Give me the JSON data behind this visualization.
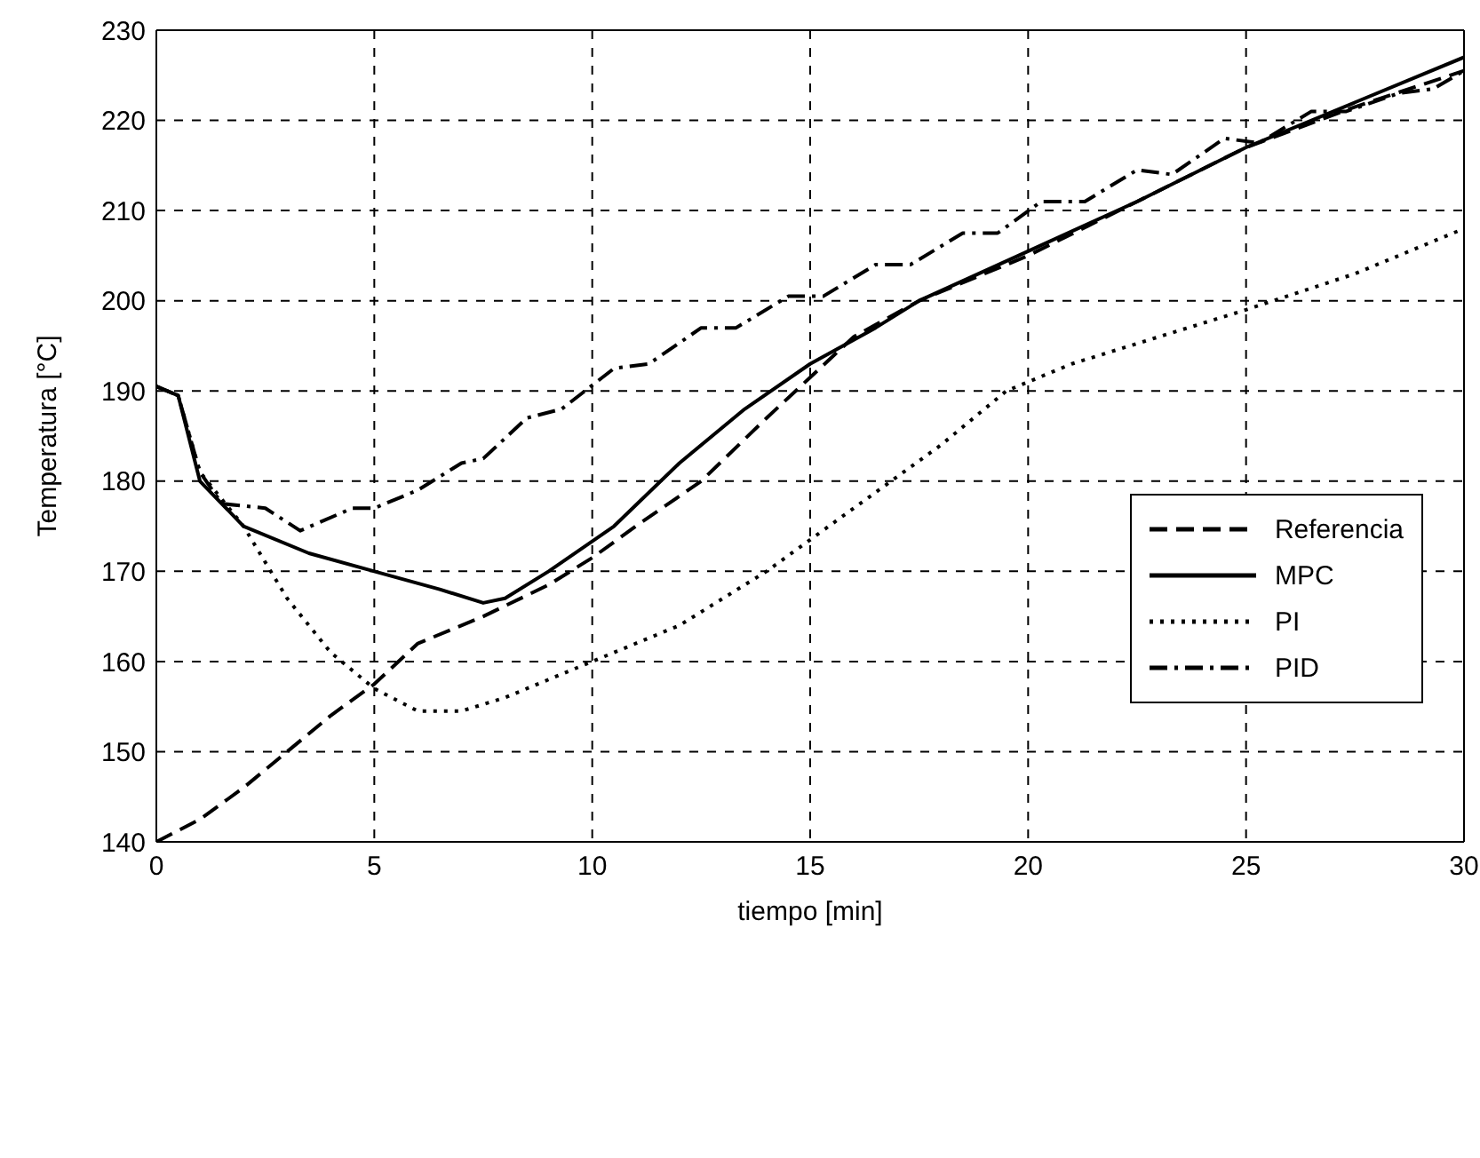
{
  "chart_data": {
    "type": "line",
    "xlabel": "tiempo [min]",
    "ylabel": "Temperatura [°C]",
    "xlim": [
      0,
      30
    ],
    "ylim": [
      140,
      230
    ],
    "xticks": [
      0,
      5,
      10,
      15,
      20,
      25,
      30
    ],
    "yticks": [
      140,
      150,
      160,
      170,
      180,
      190,
      200,
      210,
      220,
      230
    ],
    "grid": true,
    "legend": "right",
    "marker": "none",
    "series": [
      {
        "name": "Referencia",
        "color": "#000000",
        "line_style": "dashed",
        "x": [
          0,
          1,
          2,
          3,
          4,
          5,
          6,
          7.5,
          9,
          10,
          11,
          12.5,
          14,
          15,
          16,
          17.5,
          20,
          22.5,
          25,
          27.5,
          30
        ],
        "values": [
          140,
          142.5,
          146,
          150,
          154,
          157.5,
          162,
          165,
          168.5,
          171.5,
          175,
          180,
          187,
          191.5,
          196,
          200,
          205,
          211,
          217,
          221.5,
          225.5
        ]
      },
      {
        "name": "MPC",
        "color": "#000000",
        "line_style": "solid",
        "x": [
          0,
          0.5,
          1,
          2,
          3.5,
          5,
          6.5,
          7.5,
          8,
          9,
          10.5,
          12,
          13.5,
          15,
          16.5,
          17.5,
          20,
          22.5,
          25,
          27.5,
          30
        ],
        "values": [
          190.5,
          189.5,
          180,
          175,
          172,
          170,
          168,
          166.5,
          167,
          170,
          175,
          182,
          188,
          193,
          197,
          200,
          205.5,
          211,
          217,
          222,
          227
        ]
      },
      {
        "name": "PI",
        "color": "#000000",
        "line_style": "dotted",
        "x": [
          0,
          0.5,
          1,
          2,
          3,
          4,
          5,
          6,
          7,
          8,
          9,
          10,
          12,
          14,
          16,
          18,
          19.5,
          21,
          23,
          25,
          27.5,
          30
        ],
        "values": [
          190.5,
          189.5,
          181,
          175,
          167,
          161,
          157,
          154.5,
          154.5,
          156,
          158,
          160,
          164,
          170,
          177,
          184,
          190,
          193,
          196,
          199,
          203,
          208
        ]
      },
      {
        "name": "PID",
        "color": "#000000",
        "line_style": "dashdot",
        "x": [
          0,
          0.5,
          1,
          1.5,
          2.5,
          3.3,
          4.5,
          5,
          6,
          7,
          7.5,
          8.5,
          9.3,
          10.5,
          11.3,
          12.5,
          13.3,
          14.5,
          15.3,
          16.5,
          17.3,
          18.5,
          19.3,
          20.3,
          21.3,
          22.5,
          23.3,
          24.5,
          25.3,
          26.5,
          27.3,
          28.5,
          29.3,
          30
        ],
        "values": [
          190.5,
          189.5,
          181,
          177.5,
          177,
          174.5,
          177,
          177,
          179,
          182,
          182.5,
          187,
          188,
          192.5,
          193,
          197,
          197,
          200.5,
          200.5,
          204,
          204,
          207.5,
          207.5,
          211,
          211,
          214.5,
          214,
          218,
          217.5,
          221,
          221,
          223,
          223.5,
          225.5
        ]
      }
    ]
  }
}
